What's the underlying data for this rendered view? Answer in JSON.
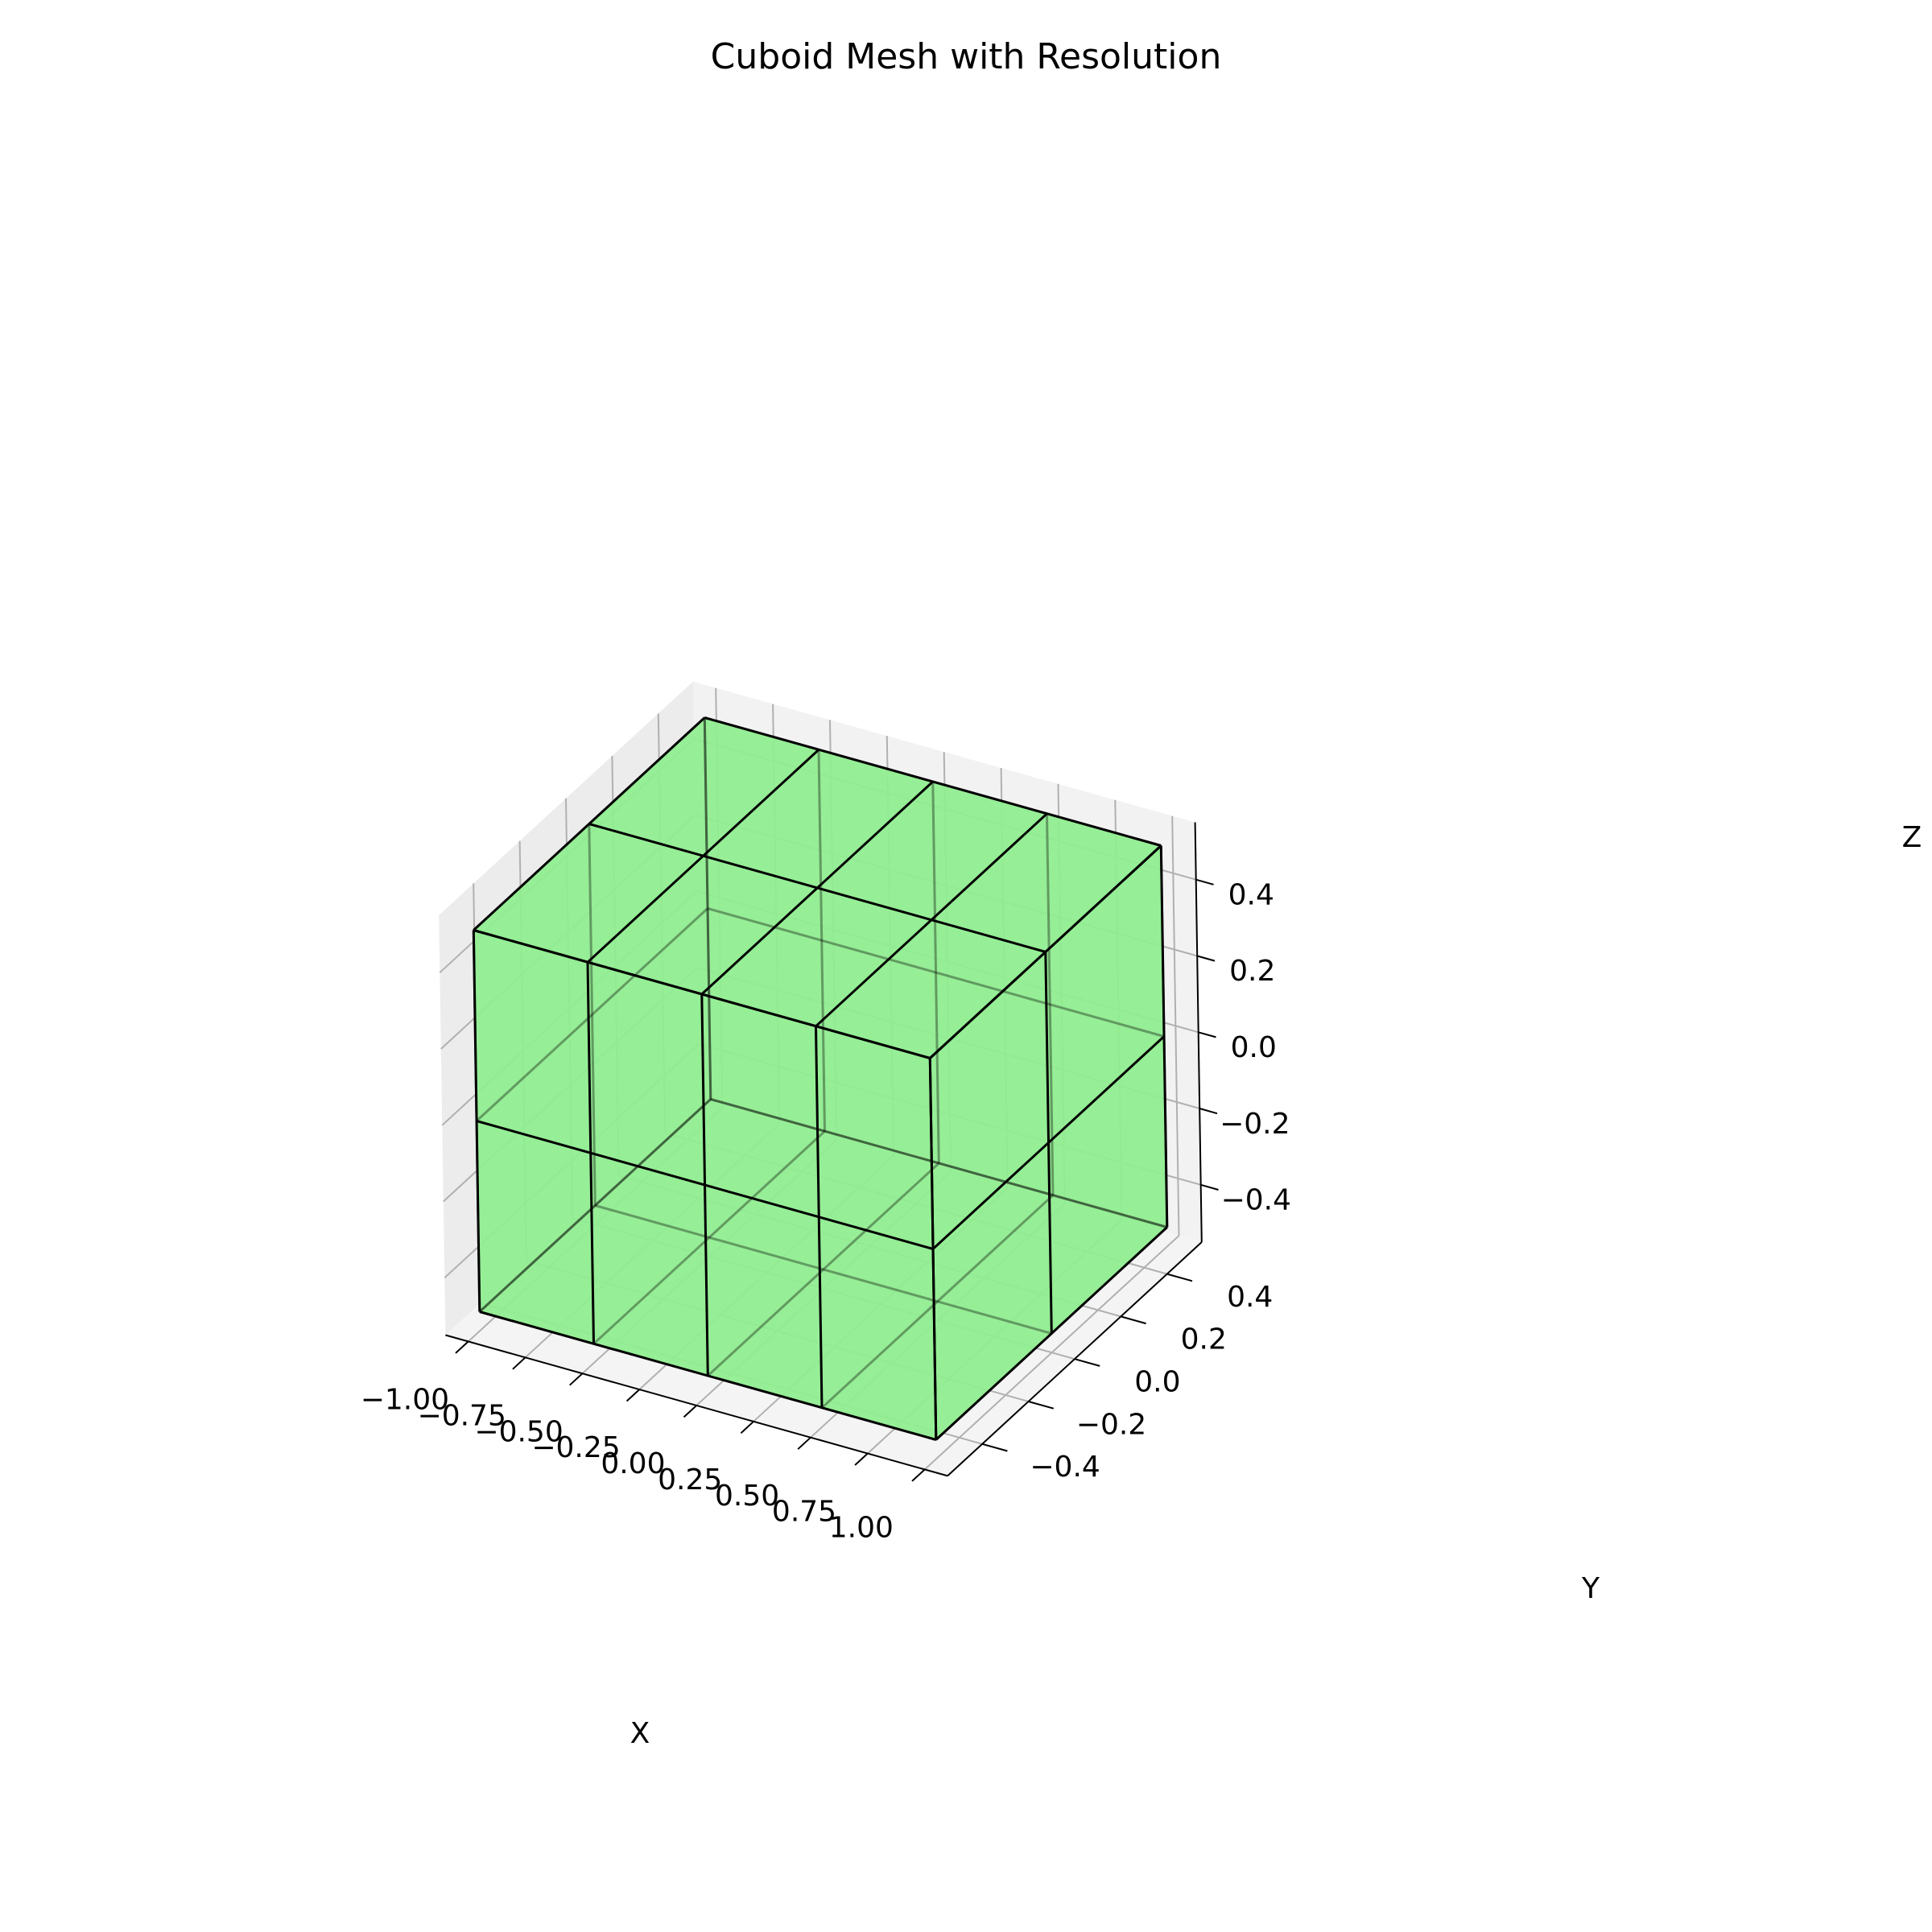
{
  "chart_data": {
    "type": "3d-mesh",
    "title": "Cuboid Mesh with Resolution",
    "xlabel": "X",
    "ylabel": "Y",
    "zlabel": "Z",
    "x_ticks": [
      "−1.00",
      "−0.75",
      "−0.50",
      "−0.25",
      "0.00",
      "0.25",
      "0.50",
      "0.75",
      "1.00"
    ],
    "y_ticks": [
      "−0.4",
      "−0.2",
      "0.0",
      "0.2",
      "0.4"
    ],
    "z_ticks": [
      "−0.4",
      "−0.2",
      "0.0",
      "0.2",
      "0.4"
    ],
    "x_tick_values": [
      -1.0,
      -0.75,
      -0.5,
      -0.25,
      0.0,
      0.25,
      0.5,
      0.75,
      1.0
    ],
    "y_tick_values": [
      -0.4,
      -0.2,
      0.0,
      0.2,
      0.4
    ],
    "z_tick_values": [
      -0.4,
      -0.2,
      0.0,
      0.2,
      0.4
    ],
    "xlim": [
      -1.1,
      1.1
    ],
    "ylim": [
      -0.55,
      0.55
    ],
    "zlim": [
      -0.55,
      0.55
    ],
    "cuboid": {
      "x_range": [
        -1.0,
        1.0
      ],
      "y_range": [
        -0.5,
        0.5
      ],
      "z_range": [
        -0.5,
        0.5
      ],
      "resolution": {
        "x": 4,
        "y": 2,
        "z": 2
      }
    },
    "face_color": "#90EE90",
    "edge_color": "#000000",
    "pane_colors": {
      "back": "#f2f2f2",
      "side": "#ececec",
      "floor": "#f4f4f4"
    },
    "grid": true
  }
}
